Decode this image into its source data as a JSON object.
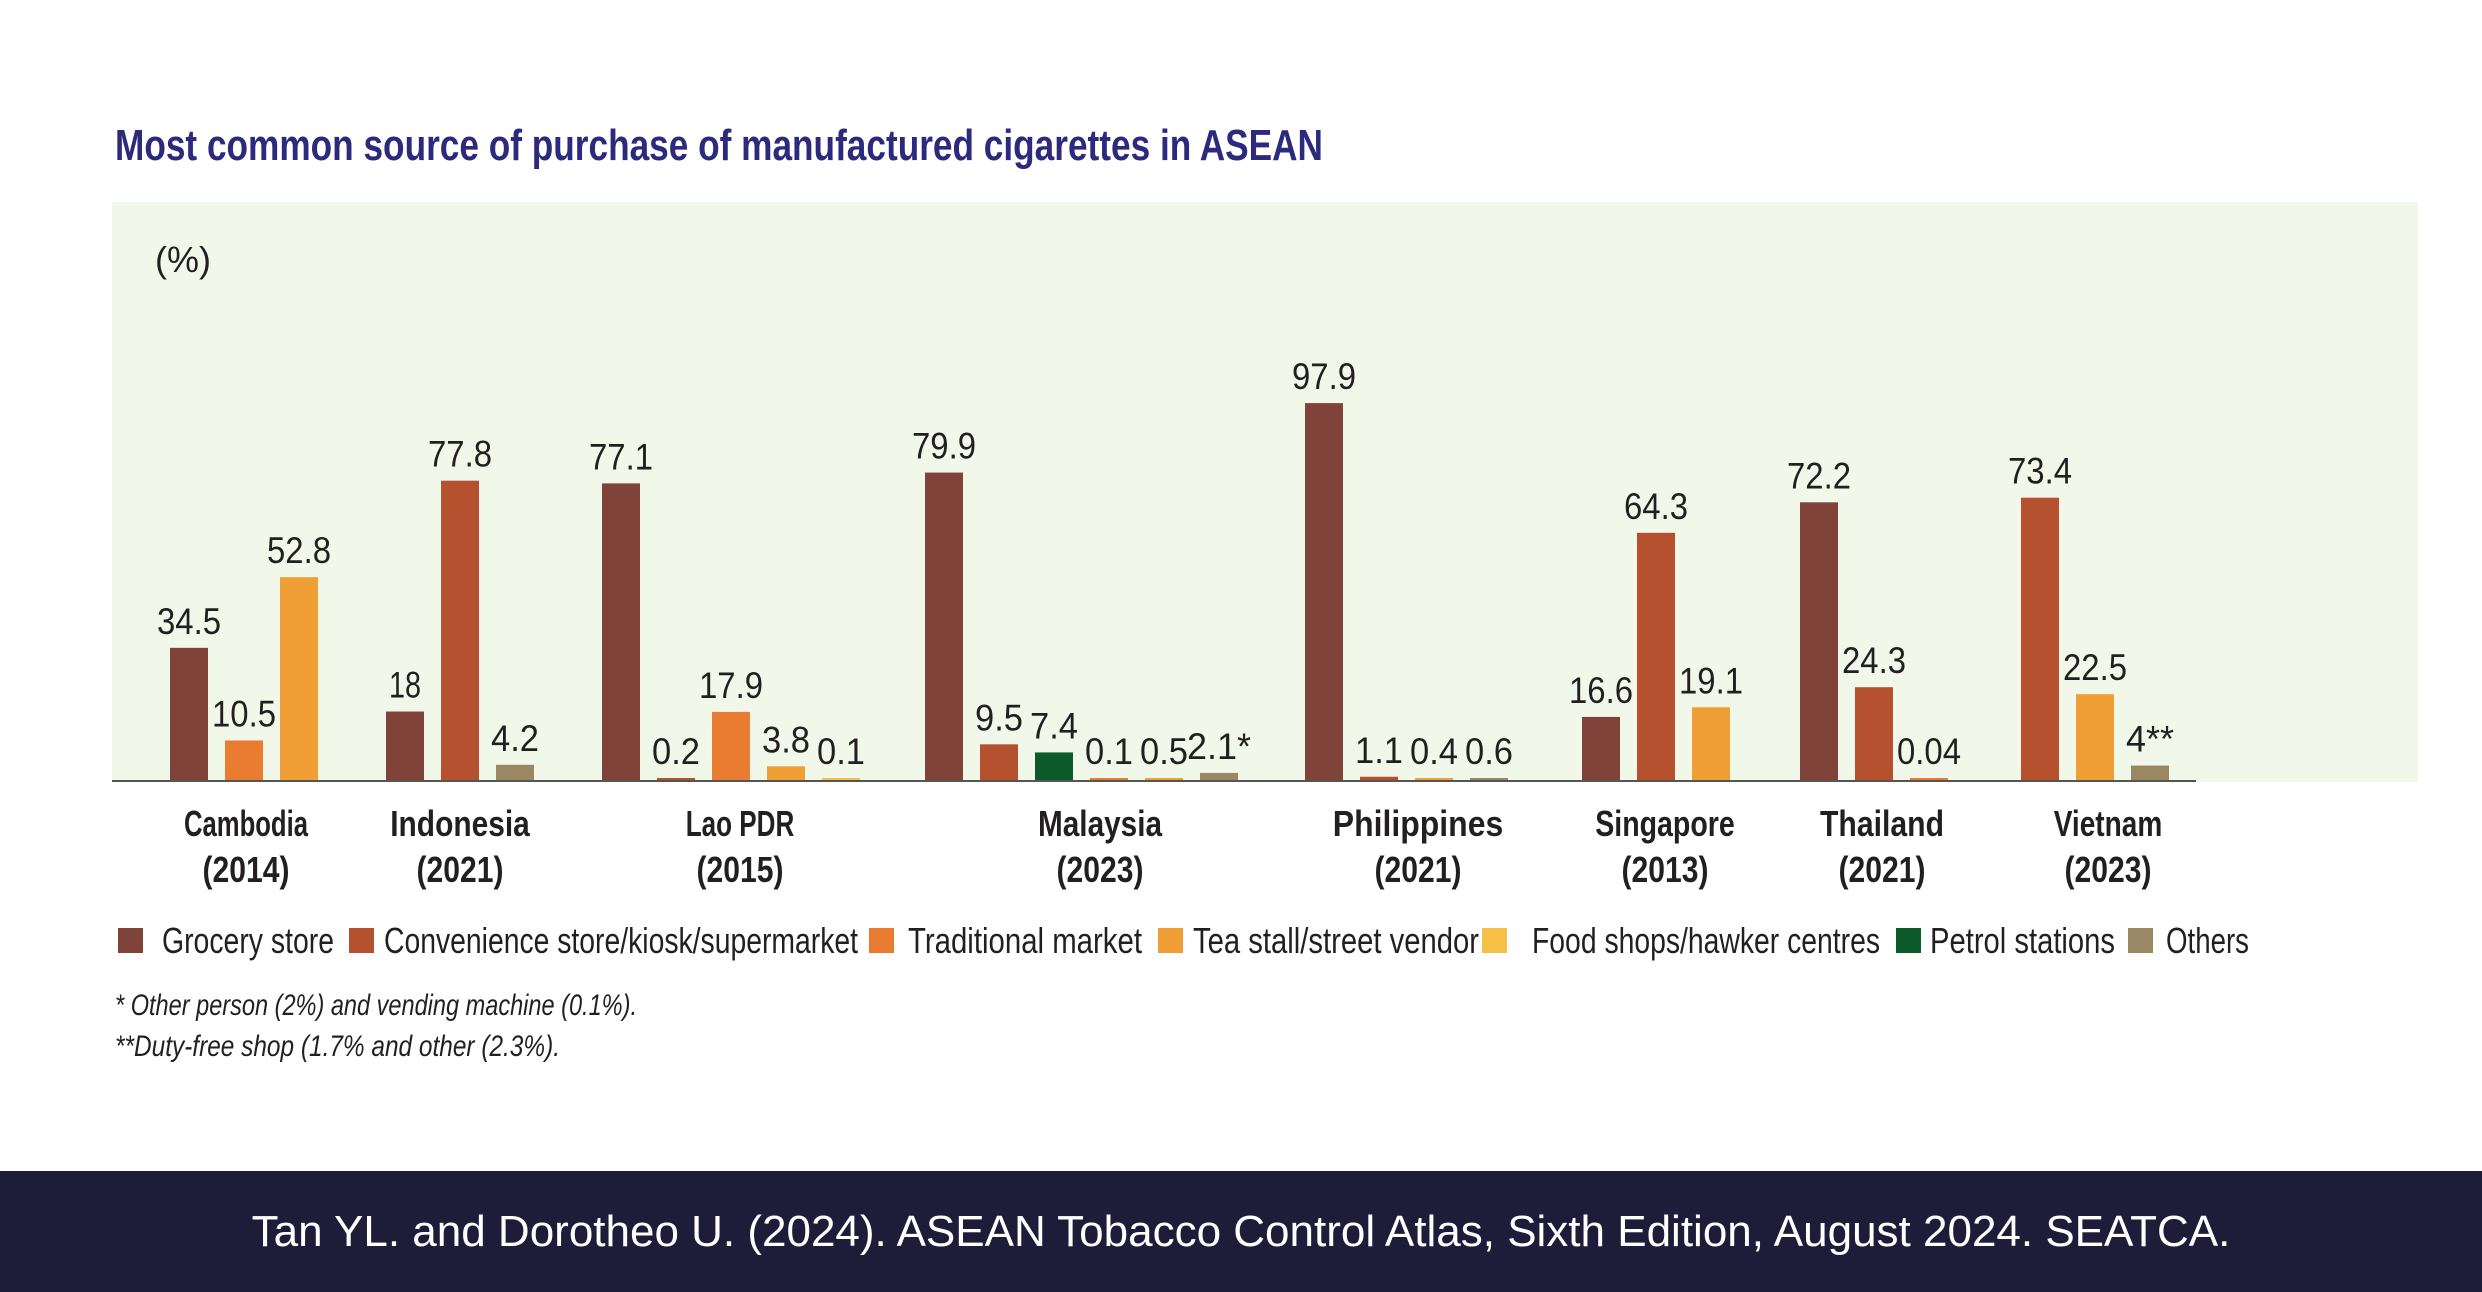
{
  "source_text": "Tan YL. and Dorotheo U. (2024). ASEAN Tobacco Control Atlas, Sixth Edition, August 2024. SEATCA.",
  "footnotes": [
    "* Other person (2%) and vending machine (0.1%).",
    "**Duty-free shop (1.7% and other (2.3%)."
  ],
  "colors": {
    "title": "#2b2a7c",
    "panel_bg": "#f1f8ea",
    "axis": "#555555",
    "text": "#231f20"
  },
  "chart_data": {
    "type": "bar",
    "title": "Most common source of purchase of manufactured cigarettes in ASEAN",
    "ylabel": "(%)",
    "ylim": [
      0,
      100
    ],
    "grid": false,
    "legend_position": "bottom",
    "categories": [
      {
        "name": "Cambodia",
        "year": "(2014)"
      },
      {
        "name": "Indonesia",
        "year": "(2021)"
      },
      {
        "name": "Lao PDR",
        "year": "(2015)"
      },
      {
        "name": "Malaysia",
        "year": "(2023)"
      },
      {
        "name": "Philippines",
        "year": "(2021)"
      },
      {
        "name": "Singapore",
        "year": "(2013)"
      },
      {
        "name": "Thailand",
        "year": "(2021)"
      },
      {
        "name": "Vietnam",
        "year": "(2023)"
      }
    ],
    "series": [
      {
        "name": "Grocery store",
        "color": "#7f4339"
      },
      {
        "name": "Convenience store/kiosk/supermarket",
        "color": "#b5512f"
      },
      {
        "name": "Traditional market",
        "color": "#ea7c31"
      },
      {
        "name": "Tea stall/street vendor",
        "color": "#f09f37"
      },
      {
        "name": "Food shops/hawker centres",
        "color": "#f6bf45"
      },
      {
        "name": "Petrol stations",
        "color": "#0d5a2a"
      },
      {
        "name": "Others",
        "color": "#9a8763"
      }
    ],
    "bars": [
      [
        {
          "series": 0,
          "value": 34.5,
          "label": "34.5"
        },
        {
          "series": 2,
          "value": 10.5,
          "label": "10.5"
        },
        {
          "series": 3,
          "value": 52.8,
          "label": "52.8"
        }
      ],
      [
        {
          "series": 0,
          "value": 18,
          "label": "18"
        },
        {
          "series": 1,
          "value": 77.8,
          "label": "77.8"
        },
        {
          "series": 6,
          "value": 4.2,
          "label": "4.2"
        }
      ],
      [
        {
          "series": 0,
          "value": 77.1,
          "label": "77.1"
        },
        {
          "series": 1,
          "value": 0.2,
          "label": "0.2"
        },
        {
          "series": 2,
          "value": 17.9,
          "label": "17.9"
        },
        {
          "series": 3,
          "value": 3.8,
          "label": "3.8"
        },
        {
          "series": 4,
          "value": 0.1,
          "label": "0.1"
        }
      ],
      [
        {
          "series": 0,
          "value": 79.9,
          "label": "79.9"
        },
        {
          "series": 1,
          "value": 9.5,
          "label": "9.5"
        },
        {
          "series": 5,
          "value": 7.4,
          "label": "7.4"
        },
        {
          "series": 2,
          "value": 0.1,
          "label": "0.1"
        },
        {
          "series": 3,
          "value": 0.5,
          "label": "0.5"
        },
        {
          "series": 6,
          "value": 2.1,
          "label": "2.1*"
        }
      ],
      [
        {
          "series": 0,
          "value": 97.9,
          "label": "97.9"
        },
        {
          "series": 1,
          "value": 1.1,
          "label": "1.1"
        },
        {
          "series": 3,
          "value": 0.4,
          "label": "0.4"
        },
        {
          "series": 6,
          "value": 0.6,
          "label": "0.6"
        }
      ],
      [
        {
          "series": 0,
          "value": 16.6,
          "label": "16.6"
        },
        {
          "series": 1,
          "value": 64.3,
          "label": "64.3"
        },
        {
          "series": 3,
          "value": 19.1,
          "label": "19.1"
        }
      ],
      [
        {
          "series": 0,
          "value": 72.2,
          "label": "72.2"
        },
        {
          "series": 1,
          "value": 24.3,
          "label": "24.3"
        },
        {
          "series": 2,
          "value": 0.04,
          "label": "0.04"
        }
      ],
      [
        {
          "series": 1,
          "value": 73.4,
          "label": "73.4"
        },
        {
          "series": 3,
          "value": 22.5,
          "label": "22.5"
        },
        {
          "series": 6,
          "value": 4,
          "label": "4**"
        }
      ]
    ]
  }
}
